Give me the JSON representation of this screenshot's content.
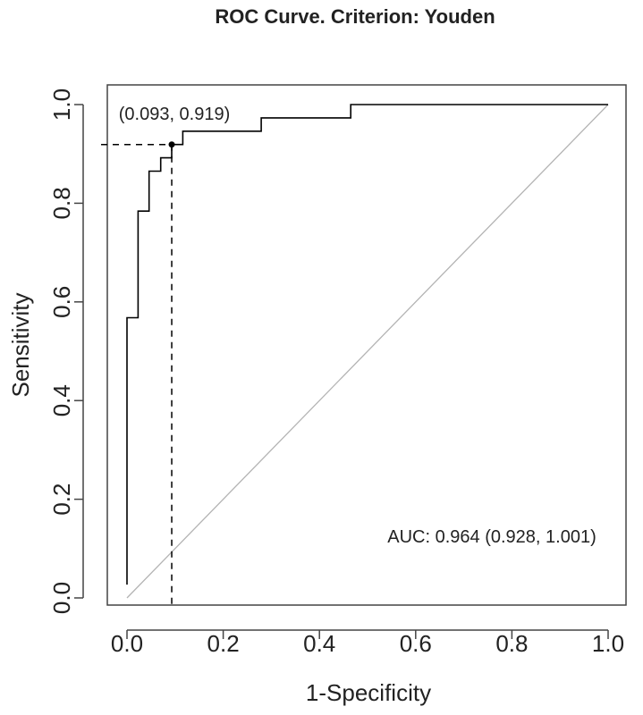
{
  "chart_data": {
    "type": "line",
    "title": "ROC Curve. Criterion: Youden",
    "xlabel": "1-Specificity",
    "ylabel": "Sensitivity",
    "xlim": [
      0,
      1
    ],
    "ylim": [
      0,
      1
    ],
    "x_ticks": [
      "0.0",
      "0.2",
      "0.4",
      "0.6",
      "0.8",
      "1.0"
    ],
    "y_ticks": [
      "0.0",
      "0.2",
      "0.4",
      "0.6",
      "0.8",
      "1.0"
    ],
    "grid": false,
    "legend": false,
    "series": [
      {
        "points": [
          [
            0.0,
            0.027
          ],
          [
            0.0,
            0.568
          ],
          [
            0.023,
            0.568
          ],
          [
            0.023,
            0.784
          ],
          [
            0.046,
            0.784
          ],
          [
            0.046,
            0.865
          ],
          [
            0.07,
            0.865
          ],
          [
            0.07,
            0.892
          ],
          [
            0.093,
            0.892
          ],
          [
            0.093,
            0.919
          ],
          [
            0.116,
            0.919
          ],
          [
            0.116,
            0.946
          ],
          [
            0.279,
            0.946
          ],
          [
            0.279,
            0.973
          ],
          [
            0.465,
            0.973
          ],
          [
            0.465,
            1.0
          ],
          [
            1.0,
            1.0
          ]
        ]
      }
    ],
    "reference_line": {
      "from": [
        0,
        0
      ],
      "to": [
        1,
        1
      ],
      "color": "#b3b3b3"
    },
    "optimal_point": {
      "x": 0.093,
      "y": 0.919,
      "label": "(0.093, 0.919)"
    },
    "auc_text": "AUC: 0.964 (0.928, 1.001)",
    "colors": {
      "curve": "#000000",
      "frame": "#444444",
      "text": "#222222",
      "diagonal": "#b3b3b3"
    }
  }
}
